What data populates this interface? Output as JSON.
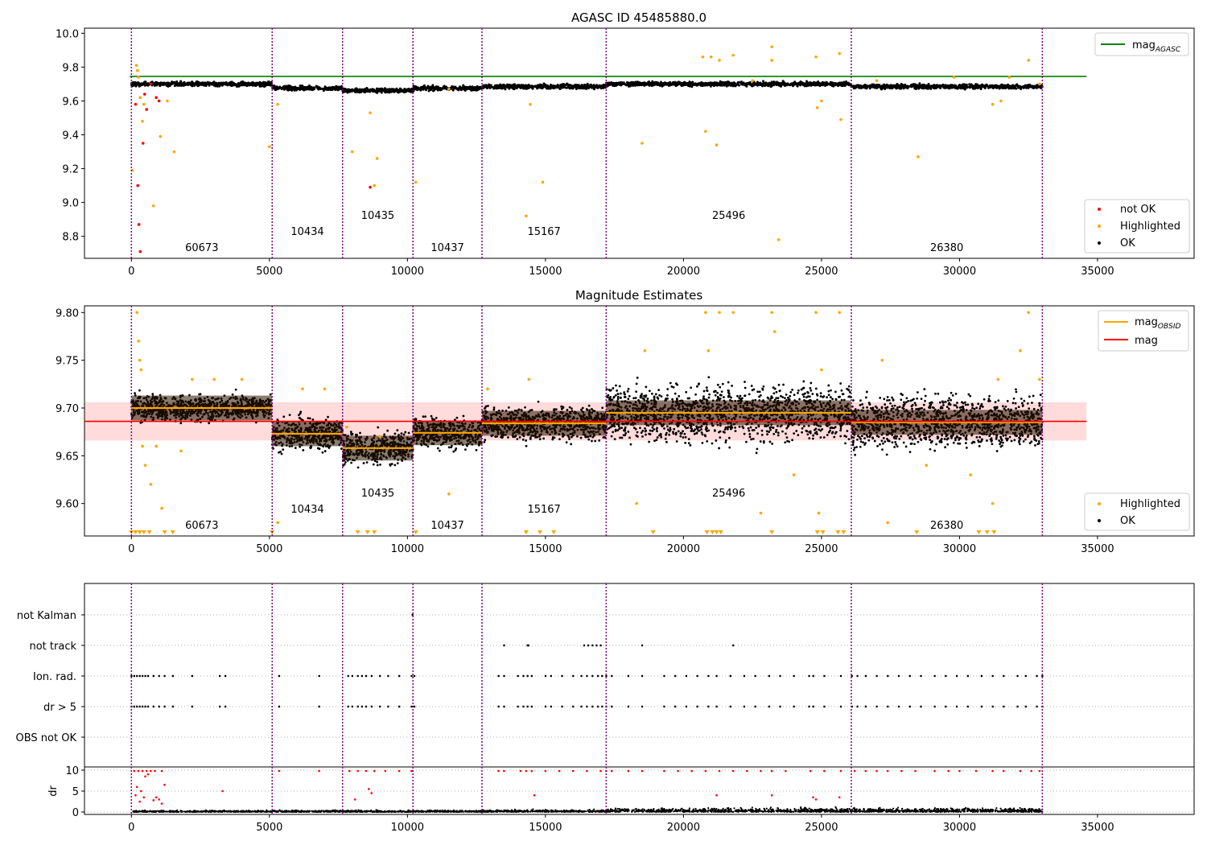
{
  "colors": {
    "obs_line": "#800080",
    "ok": "#000000",
    "highlighted": "#ffa500",
    "not_ok": "#ff0000",
    "agasc_line": "#008000",
    "mag_line": "#ff0000",
    "mag_band": "#ffcccc",
    "obsid_line": "#ffa500",
    "grid": "#b0b0b0"
  },
  "observations": [
    {
      "obsid": "60673",
      "start": 0,
      "end": 5100,
      "mag": 9.7
    },
    {
      "obsid": "10434",
      "start": 5100,
      "end": 7650,
      "mag": 9.673
    },
    {
      "obsid": "10435",
      "start": 7650,
      "end": 10200,
      "mag": 9.658
    },
    {
      "obsid": "10437",
      "start": 10200,
      "end": 12700,
      "mag": 9.674
    },
    {
      "obsid": "15167",
      "start": 12700,
      "end": 17200,
      "mag": 9.684
    },
    {
      "obsid": "25496",
      "start": 17200,
      "end": 26080,
      "mag": 9.695
    },
    {
      "obsid": "26380",
      "start": 26080,
      "end": 33000,
      "mag": 9.685
    }
  ],
  "chart_data": [
    {
      "type": "scatter",
      "title": "AGASC ID 45485880.0",
      "xlim": [
        -1700,
        38500
      ],
      "ylim": [
        8.67,
        10.03
      ],
      "xticks": [
        "0",
        "5000",
        "10000",
        "15000",
        "20000",
        "25000",
        "30000",
        "35000"
      ],
      "yticks": [
        "8.8",
        "9.0",
        "9.2",
        "9.4",
        "9.6",
        "9.8",
        "10.0"
      ],
      "agasc_mag": 9.745,
      "obsid_labels": [
        "60673",
        "10434",
        "10435",
        "10437",
        "15167",
        "25496",
        "26380"
      ],
      "legend_lines": [
        {
          "name": "mag_AGASC",
          "color": "#008000"
        }
      ],
      "legend_points": [
        "not OK",
        "Highlighted",
        "OK"
      ],
      "ok_level_by_obs": [
        9.7,
        9.675,
        9.662,
        9.675,
        9.685,
        9.7,
        9.685
      ],
      "highlighted_outliers": [
        [
          30,
          9.19
        ],
        [
          180,
          9.81
        ],
        [
          220,
          9.78
        ],
        [
          260,
          9.74
        ],
        [
          320,
          9.62
        ],
        [
          400,
          9.48
        ],
        [
          450,
          9.58
        ],
        [
          800,
          8.98
        ],
        [
          1050,
          9.39
        ],
        [
          1300,
          9.6
        ],
        [
          1550,
          9.3
        ],
        [
          5000,
          9.33
        ],
        [
          5300,
          9.58
        ],
        [
          8000,
          9.3
        ],
        [
          8650,
          9.53
        ],
        [
          8900,
          9.26
        ],
        [
          8800,
          9.1
        ],
        [
          10300,
          9.12
        ],
        [
          11500,
          9.67
        ],
        [
          14300,
          8.92
        ],
        [
          14450,
          9.58
        ],
        [
          14900,
          9.12
        ],
        [
          18500,
          9.35
        ],
        [
          20700,
          9.86
        ],
        [
          20800,
          9.42
        ],
        [
          21000,
          9.86
        ],
        [
          21200,
          9.34
        ],
        [
          21300,
          9.84
        ],
        [
          21800,
          9.87
        ],
        [
          22500,
          9.72
        ],
        [
          23200,
          9.92
        ],
        [
          23200,
          9.84
        ],
        [
          23450,
          8.78
        ],
        [
          24800,
          9.86
        ],
        [
          24850,
          9.56
        ],
        [
          25000,
          9.6
        ],
        [
          25650,
          9.88
        ],
        [
          25700,
          9.49
        ],
        [
          27000,
          9.72
        ],
        [
          28500,
          9.27
        ],
        [
          29800,
          9.74
        ],
        [
          31200,
          9.58
        ],
        [
          31500,
          9.6
        ],
        [
          31800,
          9.74
        ],
        [
          32500,
          9.84
        ],
        [
          32900,
          9.7
        ]
      ],
      "not_ok_points": [
        [
          150,
          9.58
        ],
        [
          230,
          9.1
        ],
        [
          270,
          8.87
        ],
        [
          320,
          8.71
        ],
        [
          420,
          9.35
        ],
        [
          480,
          9.64
        ],
        [
          550,
          9.55
        ],
        [
          700,
          9.7
        ],
        [
          900,
          9.62
        ],
        [
          1000,
          9.6
        ],
        [
          8650,
          9.09
        ]
      ]
    },
    {
      "type": "scatter",
      "title": "Magnitude Estimates",
      "xlim": [
        -1700,
        38500
      ],
      "ylim": [
        9.566,
        9.807
      ],
      "xticks": [
        "0",
        "5000",
        "10000",
        "15000",
        "20000",
        "25000",
        "30000",
        "35000"
      ],
      "yticks": [
        "9.60",
        "9.65",
        "9.70",
        "9.75",
        "9.80"
      ],
      "mag": 9.686,
      "mag_band": [
        9.666,
        9.706
      ],
      "obsid_labels": [
        "60673",
        "10434",
        "10435",
        "10437",
        "15167",
        "25496",
        "26380"
      ],
      "legend_lines": [
        {
          "name": "mag_OBSID",
          "color": "#ffa500"
        },
        {
          "name": "mag",
          "color": "#ff0000"
        }
      ],
      "legend_points": [
        "Highlighted",
        "OK"
      ],
      "ok_spread_by_obs": [
        0.025,
        0.032,
        0.032,
        0.03,
        0.033,
        0.055,
        0.05
      ],
      "highlighted_outliers": [
        [
          200,
          9.8
        ],
        [
          260,
          9.77
        ],
        [
          300,
          9.75
        ],
        [
          350,
          9.74
        ],
        [
          400,
          9.66
        ],
        [
          500,
          9.64
        ],
        [
          700,
          9.62
        ],
        [
          900,
          9.66
        ],
        [
          1100,
          9.595
        ],
        [
          1800,
          9.655
        ],
        [
          2200,
          9.73
        ],
        [
          3000,
          9.73
        ],
        [
          4000,
          9.73
        ],
        [
          5300,
          9.58
        ],
        [
          6200,
          9.72
        ],
        [
          7000,
          9.72
        ],
        [
          7800,
          9.68
        ],
        [
          9000,
          9.67
        ],
        [
          11500,
          9.61
        ],
        [
          12900,
          9.72
        ],
        [
          14400,
          9.73
        ],
        [
          18300,
          9.6
        ],
        [
          18600,
          9.76
        ],
        [
          20800,
          9.8
        ],
        [
          20900,
          9.76
        ],
        [
          21300,
          9.8
        ],
        [
          21800,
          9.8
        ],
        [
          22800,
          9.59
        ],
        [
          23200,
          9.8
        ],
        [
          23300,
          9.78
        ],
        [
          24000,
          9.63
        ],
        [
          24800,
          9.8
        ],
        [
          24900,
          9.59
        ],
        [
          25000,
          9.74
        ],
        [
          25650,
          9.8
        ],
        [
          27200,
          9.75
        ],
        [
          27400,
          9.58
        ],
        [
          28800,
          9.64
        ],
        [
          30400,
          9.63
        ],
        [
          31200,
          9.6
        ],
        [
          31400,
          9.73
        ],
        [
          32200,
          9.76
        ],
        [
          32500,
          9.8
        ],
        [
          32900,
          9.73
        ]
      ],
      "lower_limit_markers": [
        0,
        150,
        300,
        450,
        650,
        1200,
        1500,
        5100,
        8200,
        8550,
        8800,
        10300,
        14300,
        14800,
        15300,
        18900,
        20850,
        21050,
        21200,
        21350,
        23200,
        24850,
        25050,
        25600,
        25800,
        28450,
        30700,
        31000,
        31250
      ]
    },
    {
      "type": "scatter",
      "ylabels": [
        "not Kalman",
        "not track",
        "Ion. rad.",
        "dr > 5",
        "OBS not OK"
      ],
      "flags": {
        "not Kalman": [
          10180
        ],
        "not track": [
          13500,
          14350,
          14380,
          16400,
          16550,
          16700,
          16850,
          17000,
          18500,
          21800
        ],
        "Ion. rad.": [
          0,
          100,
          200,
          300,
          400,
          500,
          600,
          800,
          1000,
          1200,
          1500,
          2200,
          3200,
          3400,
          5350,
          6800,
          7850,
          8000,
          8200,
          8350,
          8500,
          8700,
          9000,
          9300,
          9700,
          10150,
          10250,
          13300,
          13500,
          14000,
          14200,
          14350,
          14500,
          15000,
          15200,
          15600,
          16000,
          16300,
          16500,
          16700,
          16900,
          17050,
          17200,
          17400,
          18000,
          18500,
          19300,
          19700,
          20100,
          20500,
          20900,
          21200,
          21700,
          22200,
          22600,
          23100,
          23500,
          24000,
          24550,
          24700,
          25100,
          25700,
          26100,
          26300,
          26600,
          27000,
          27400,
          27800,
          28200,
          28600,
          29100,
          29500,
          29900,
          30300,
          30800,
          31200,
          31600,
          32100,
          32400,
          32800,
          33000
        ],
        "dr > 5": [
          0,
          100,
          200,
          300,
          400,
          500,
          600,
          800,
          1000,
          1200,
          1500,
          2200,
          3200,
          3400,
          5350,
          6800,
          7850,
          8000,
          8200,
          8350,
          8500,
          8700,
          9000,
          9300,
          9700,
          10150,
          10250,
          13300,
          13500,
          14000,
          14200,
          14350,
          14500,
          15000,
          15200,
          15600,
          16000,
          16300,
          16500,
          16700,
          16900,
          17050,
          17200,
          17400,
          18000,
          18500,
          19300,
          19700,
          20100,
          20500,
          20900,
          21200,
          21700,
          22200,
          22600,
          23100,
          23500,
          24000,
          24550,
          24700,
          25100,
          25700,
          26100,
          26300,
          26600,
          27000,
          27400,
          27800,
          28200,
          28600,
          29100,
          29500,
          29900,
          30300,
          30800,
          31200,
          31600,
          32100,
          32400,
          32800,
          33000
        ],
        "OBS not OK": []
      }
    },
    {
      "type": "scatter",
      "ylabel": "dr",
      "xlim": [
        -1700,
        38500
      ],
      "ylim": [
        -0.5,
        10.5
      ],
      "xticks": [
        "0",
        "5000",
        "10000",
        "15000",
        "20000",
        "25000",
        "30000",
        "35000"
      ],
      "yticks": [
        "0",
        "5",
        "10"
      ],
      "dr_spread_by_obs": [
        0.5,
        0.6,
        0.6,
        0.6,
        0.7,
        1.3,
        1.3
      ],
      "dr_high_points": [
        [
          100,
          9.8
        ],
        [
          250,
          9.8
        ],
        [
          400,
          9.8
        ],
        [
          550,
          9.8
        ],
        [
          700,
          9.8
        ],
        [
          850,
          9.8
        ],
        [
          1100,
          9.8
        ],
        [
          5350,
          9.8
        ],
        [
          6800,
          9.8
        ],
        [
          7900,
          9.8
        ],
        [
          8200,
          9.8
        ],
        [
          8500,
          9.8
        ],
        [
          8800,
          9.8
        ],
        [
          9200,
          9.8
        ],
        [
          9700,
          9.8
        ],
        [
          10150,
          9.8
        ],
        [
          13300,
          9.8
        ],
        [
          13500,
          9.8
        ],
        [
          14100,
          9.8
        ],
        [
          14300,
          9.8
        ],
        [
          14500,
          9.8
        ],
        [
          15000,
          9.8
        ],
        [
          15500,
          9.8
        ],
        [
          16000,
          9.8
        ],
        [
          16500,
          9.8
        ],
        [
          17000,
          9.8
        ],
        [
          17200,
          9.8
        ],
        [
          17400,
          9.8
        ],
        [
          18000,
          9.8
        ],
        [
          18500,
          9.8
        ],
        [
          19300,
          9.8
        ],
        [
          19800,
          9.8
        ],
        [
          20300,
          9.8
        ],
        [
          20800,
          9.8
        ],
        [
          21300,
          9.8
        ],
        [
          21800,
          9.8
        ],
        [
          22300,
          9.8
        ],
        [
          22800,
          9.8
        ],
        [
          23200,
          9.8
        ],
        [
          23700,
          9.8
        ],
        [
          24600,
          9.8
        ],
        [
          25100,
          9.8
        ],
        [
          25700,
          9.8
        ],
        [
          26200,
          9.8
        ],
        [
          26600,
          9.8
        ],
        [
          27000,
          9.8
        ],
        [
          27400,
          9.8
        ],
        [
          27900,
          9.8
        ],
        [
          28400,
          9.8
        ],
        [
          29100,
          9.8
        ],
        [
          29600,
          9.8
        ],
        [
          30000,
          9.8
        ],
        [
          30600,
          9.8
        ],
        [
          31200,
          9.8
        ],
        [
          31600,
          9.8
        ],
        [
          32200,
          9.8
        ],
        [
          32600,
          9.8
        ],
        [
          32900,
          9.8
        ],
        [
          150,
          4.0
        ],
        [
          200,
          6.0
        ],
        [
          300,
          2.5
        ],
        [
          350,
          5.0
        ],
        [
          450,
          3.5
        ],
        [
          500,
          8.5
        ],
        [
          600,
          9.0
        ],
        [
          800,
          2.8
        ],
        [
          900,
          3.5
        ],
        [
          1000,
          3.0
        ],
        [
          1100,
          2.0
        ],
        [
          1200,
          6.5
        ],
        [
          3300,
          5.0
        ],
        [
          8100,
          3.0
        ],
        [
          8600,
          5.5
        ],
        [
          8700,
          4.5
        ],
        [
          14600,
          4.0
        ],
        [
          21200,
          4.0
        ],
        [
          23200,
          4.0
        ],
        [
          24700,
          3.5
        ],
        [
          24800,
          3.0
        ],
        [
          25650,
          3.5
        ]
      ]
    }
  ]
}
